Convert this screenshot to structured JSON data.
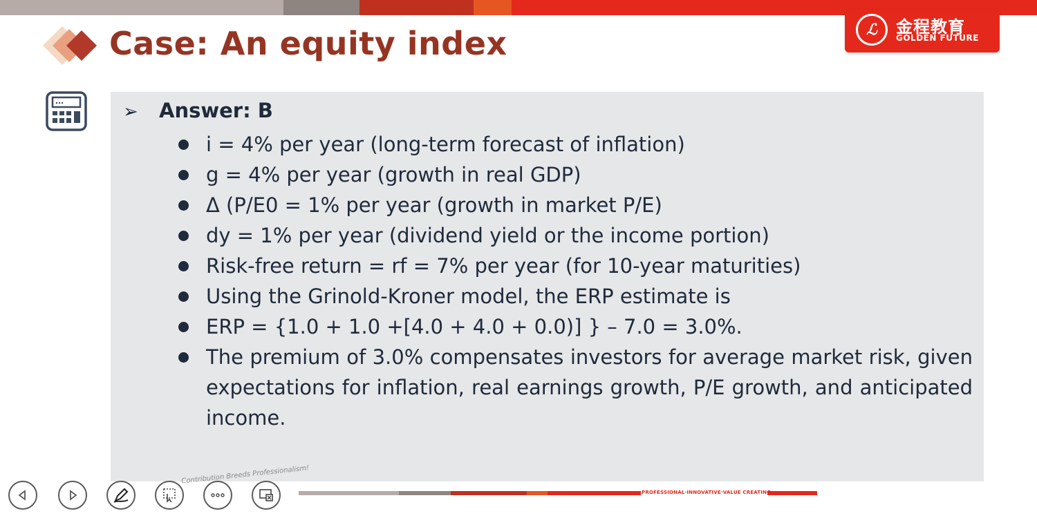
{
  "slide": {
    "title": "Case: An equity index",
    "answer_label": "Answer: B",
    "bullets": [
      "i = 4% per year (long-term forecast of inflation)",
      "g = 4% per year (growth in real GDP)",
      "Δ (P/E0 = 1% per year (growth in market P/E)",
      "dy = 1% per year (dividend yield or the income portion)",
      "Risk-free return = rf = 7% per year (for 10-year maturities)",
      "Using the Grinold-Kroner model, the ERP estimate is",
      "ERP = {1.0 + 1.0 +[4.0 + 4.0 + 0.0)] } – 7.0 = 3.0%.",
      "The premium of 3.0% compensates investors for average market risk, given expectations for inflation, real earnings growth, P/E growth, and anticipated income."
    ]
  },
  "logo": {
    "cn": "金程教育",
    "en": "GOLDEN FUTURE"
  },
  "footer": {
    "slogan": "Contribution Breeds Professionalism!",
    "tagline": "PROFESSIONAL·INNOVATIVE·VALUE CREATING"
  },
  "toolbar": {
    "buttons": [
      "previous-icon",
      "next-icon",
      "pen-icon",
      "pointer-icon",
      "more-icon",
      "screen-icon"
    ]
  },
  "colors": {
    "brand_red": "#e4291c",
    "title_brown": "#963423",
    "panel_bg": "#e6e7e9",
    "text": "#1f2a3a"
  }
}
